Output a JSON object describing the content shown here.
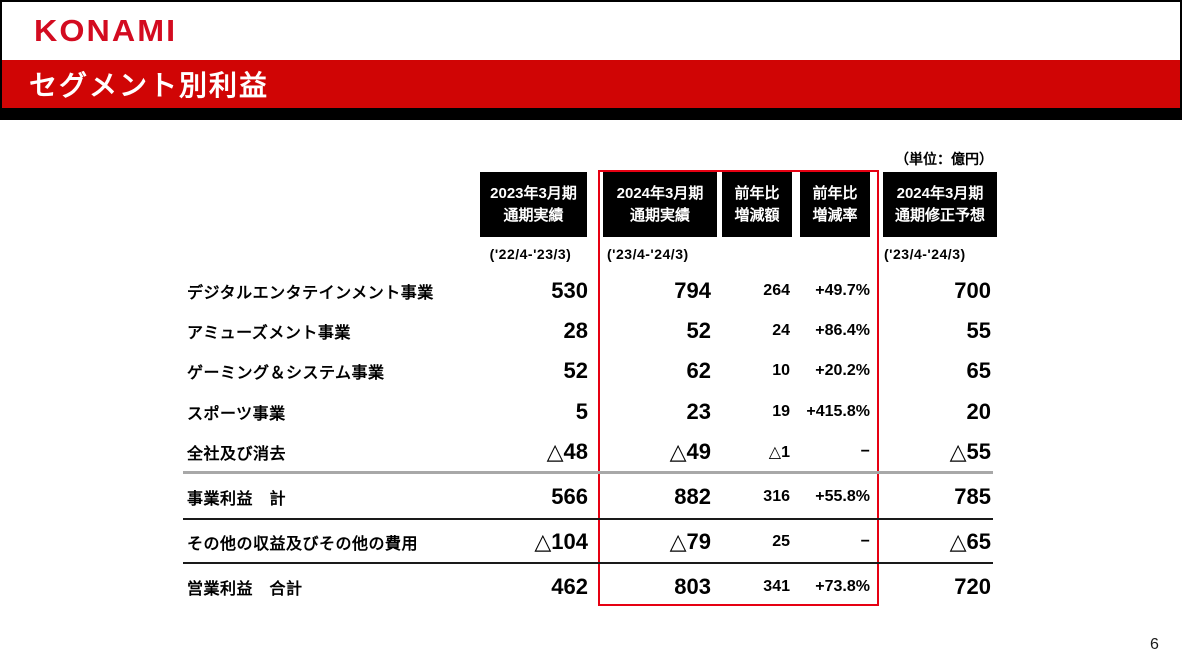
{
  "header": {
    "logo": "KONAMI",
    "title": "セグメント別利益"
  },
  "unit_label": "（単位：億円）",
  "columns": [
    {
      "title": "2023年3月期\n通期実績",
      "period": "('22/4-'23/3)"
    },
    {
      "title": "2024年3月期\n通期実績",
      "period": "('23/4-'24/3)"
    },
    {
      "title": "前年比\n増減額"
    },
    {
      "title": "前年比\n増減率"
    },
    {
      "title": "2024年3月期\n通期修正予想",
      "period": "('23/4-'24/3)"
    }
  ],
  "rows": [
    {
      "label": "デジタルエンタテインメント事業",
      "fy2023": "530",
      "fy2024": "794",
      "diff": "264",
      "rate": "+49.7%",
      "forecast": "700"
    },
    {
      "label": "アミューズメント事業",
      "fy2023": "28",
      "fy2024": "52",
      "diff": "24",
      "rate": "+86.4%",
      "forecast": "55"
    },
    {
      "label": "ゲーミング＆システム事業",
      "fy2023": "52",
      "fy2024": "62",
      "diff": "10",
      "rate": "+20.2%",
      "forecast": "65"
    },
    {
      "label": "スポーツ事業",
      "fy2023": "5",
      "fy2024": "23",
      "diff": "19",
      "rate": "+415.8%",
      "forecast": "20"
    },
    {
      "label": "全社及び消去",
      "fy2023": "△48",
      "fy2024": "△49",
      "diff": "△1",
      "rate": "−",
      "forecast": "△55"
    },
    {
      "label": "事業利益　計",
      "fy2023": "566",
      "fy2024": "882",
      "diff": "316",
      "rate": "+55.8%",
      "forecast": "785"
    },
    {
      "label": "その他の収益及びその他の費用",
      "fy2023": "△104",
      "fy2024": "△79",
      "diff": "25",
      "rate": "−",
      "forecast": "△65"
    },
    {
      "label": "営業利益　合計",
      "fy2023": "462",
      "fy2024": "803",
      "diff": "341",
      "rate": "+73.8%",
      "forecast": "720"
    }
  ],
  "page_number": "6",
  "colors": {
    "banner_red": "#d00505",
    "logo_red": "#d30b20",
    "highlight_red": "#e60012",
    "header_box_bg": "#000000"
  }
}
